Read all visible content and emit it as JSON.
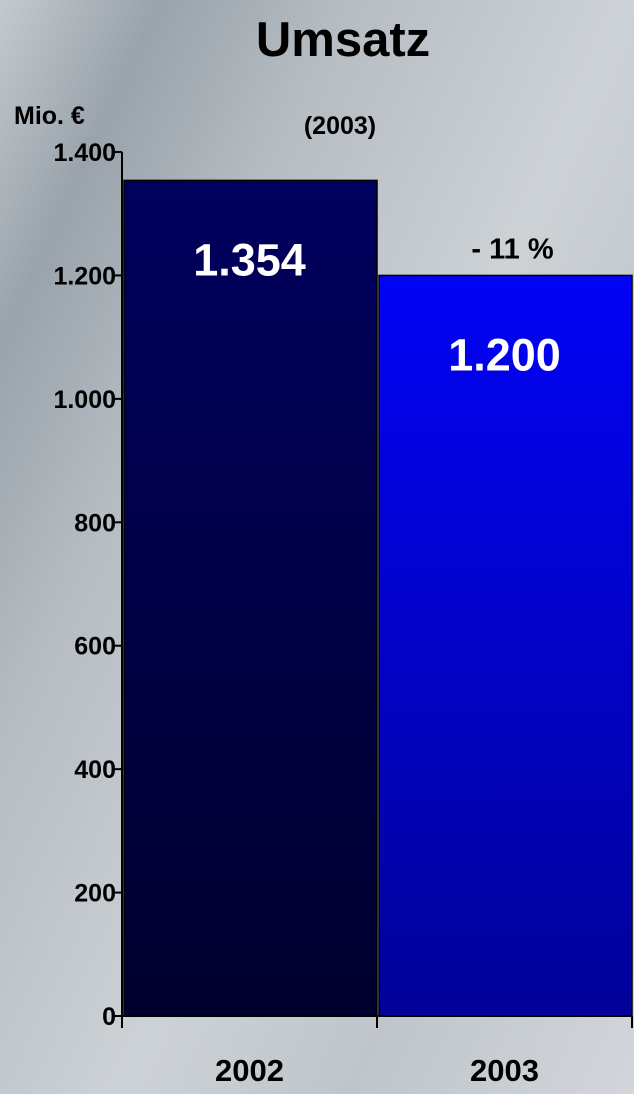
{
  "chart_data": {
    "type": "bar",
    "title": "Umsatz",
    "subtitle": "(2003)",
    "ylabel": "Mio. €",
    "xlabel": "",
    "categories": [
      "2002",
      "2003"
    ],
    "values": [
      1354,
      1200
    ],
    "value_labels": [
      "1.354",
      "1.200"
    ],
    "ylim": [
      0,
      1400
    ],
    "yticks": [
      0,
      200,
      400,
      600,
      800,
      1000,
      1200,
      1400
    ],
    "ytick_labels": [
      "0",
      "200",
      "400",
      "600",
      "800",
      "1.000",
      "1.200",
      "1.400"
    ],
    "annotations": [
      {
        "text": "- 11 %",
        "category": "2003"
      }
    ],
    "bar_colors": [
      {
        "top": "#00005e",
        "bottom": "#00002e"
      },
      {
        "top": "#0202f5",
        "bottom": "#02029a"
      }
    ],
    "grid": false,
    "legend": "none"
  }
}
